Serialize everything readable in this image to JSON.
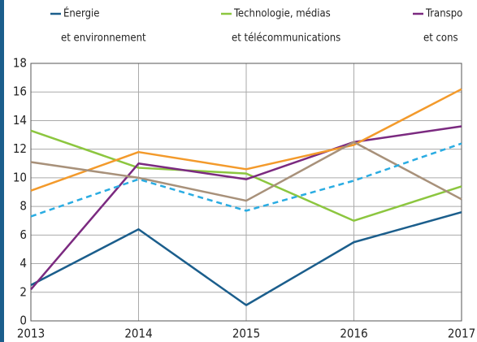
{
  "chart_data": {
    "type": "line",
    "x": [
      2013,
      2014,
      2015,
      2016,
      2017
    ],
    "xlim": [
      2013,
      2017
    ],
    "xticks": [
      2013,
      2014,
      2015,
      2016,
      2017
    ],
    "ylim": [
      0,
      18
    ],
    "yticks": [
      0,
      2,
      4,
      6,
      8,
      10,
      12,
      14,
      16,
      18
    ],
    "grid": true,
    "series": [
      {
        "name": [
          "Énergie",
          "et environnement"
        ],
        "color": "#1b5e8c",
        "values": [
          2.5,
          6.4,
          1.1,
          5.5,
          7.6
        ]
      },
      {
        "name": [
          "Technologie, médias",
          "et télécommunications"
        ],
        "color": "#8cc63f",
        "values": [
          13.3,
          10.7,
          10.3,
          7.0,
          9.4
        ]
      },
      {
        "name": [
          "Transpo",
          "et cons"
        ],
        "color": "#7b2a80",
        "values": [
          2.2,
          11.0,
          9.9,
          12.5,
          13.6
        ]
      },
      {
        "color": "#f39a2b",
        "values": [
          9.1,
          11.8,
          10.6,
          12.3,
          16.2
        ]
      },
      {
        "color": "#a8917a",
        "values": [
          11.1,
          10.0,
          8.4,
          12.5,
          8.5
        ]
      },
      {
        "color": "#2aace2",
        "dashed": true,
        "values": [
          7.3,
          9.9,
          7.7,
          9.8,
          12.4
        ]
      }
    ]
  }
}
